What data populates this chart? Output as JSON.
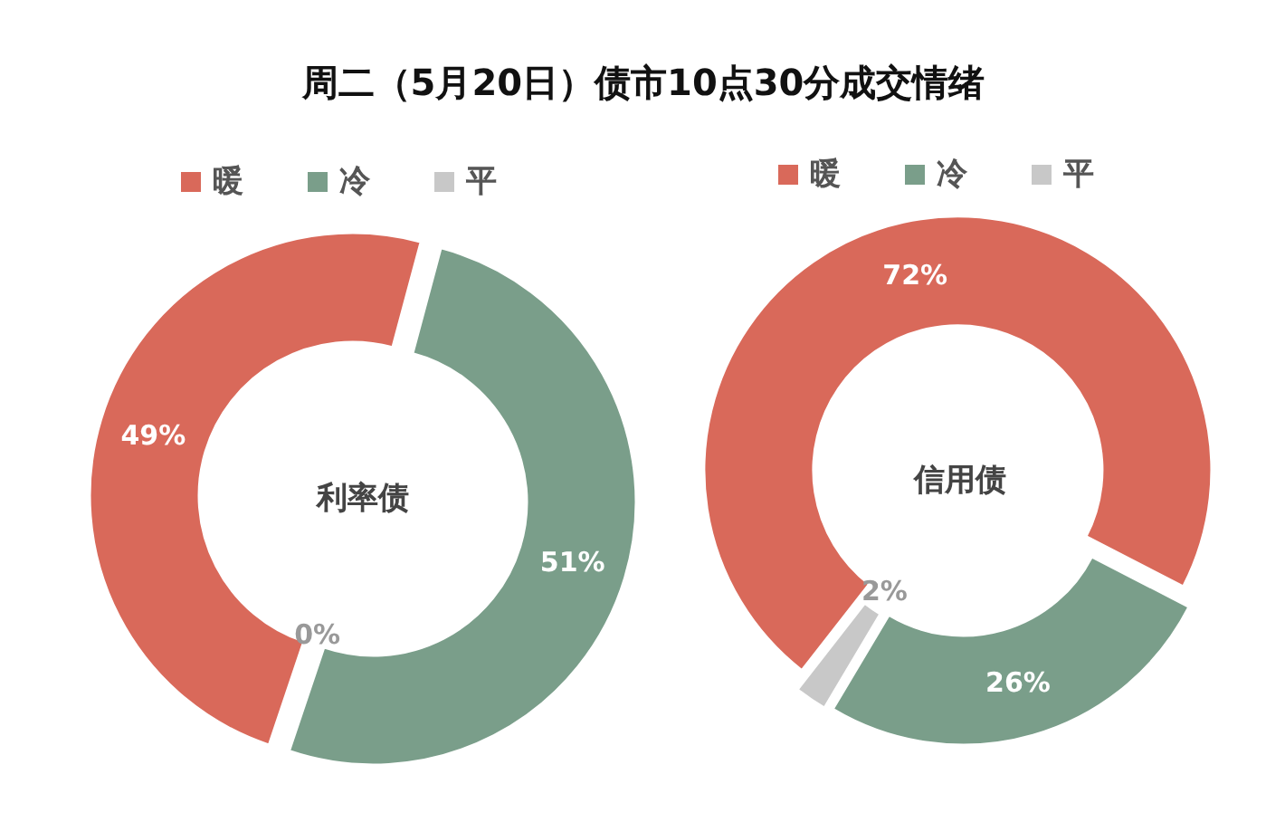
{
  "chart_data": [
    {
      "type": "donut",
      "title": "周二（5月20日）债市10点30分成交情绪",
      "annotations": [
        "利率债"
      ],
      "categories": [
        "暖",
        "冷",
        "平"
      ],
      "values": [
        49,
        51,
        0
      ],
      "value_labels": [
        "49%",
        "51%",
        "0%"
      ],
      "colors": [
        "#d9695a",
        "#7a9e8a",
        "#c8c8c8"
      ],
      "legend": "top"
    },
    {
      "type": "donut",
      "annotations": [
        "信用债"
      ],
      "categories": [
        "暖",
        "冷",
        "平"
      ],
      "values": [
        72,
        26,
        2
      ],
      "value_labels": [
        "72%",
        "26%",
        "2%"
      ],
      "colors": [
        "#d9695a",
        "#7a9e8a",
        "#c8c8c8"
      ],
      "legend": "top"
    }
  ]
}
